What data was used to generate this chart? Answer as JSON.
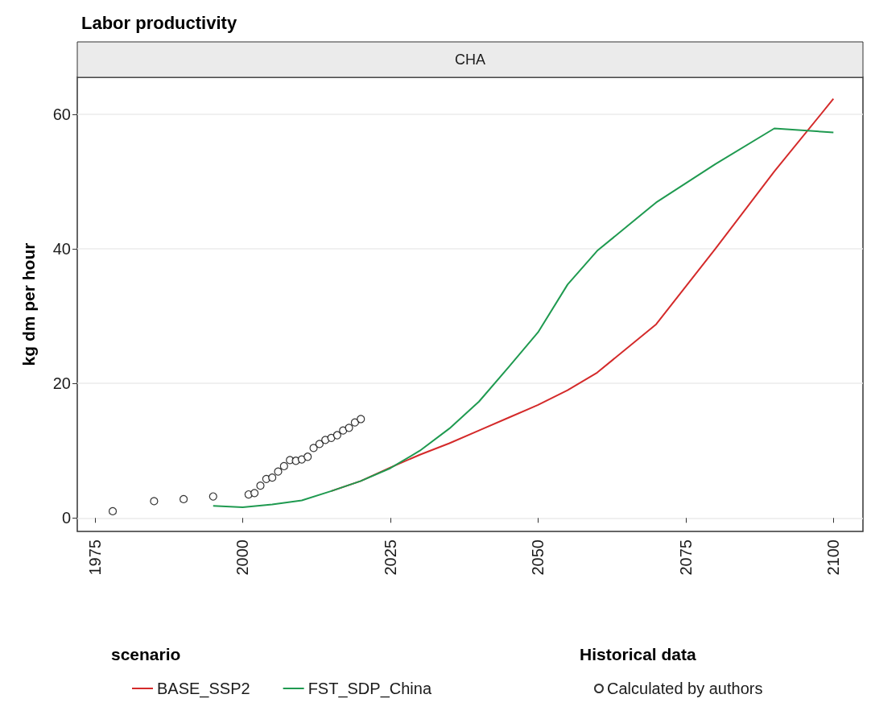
{
  "chart_data": {
    "type": "line",
    "title": "Labor productivity",
    "subtitle": "CHA",
    "ylabel": "kg dm per hour",
    "legend_title": "scenario",
    "annotations": [
      "Historical data"
    ],
    "xlim": [
      1972,
      2105
    ],
    "xticks": [
      1975,
      2000,
      2025,
      2050,
      2075,
      2100
    ],
    "ylim": [
      -2,
      65.5
    ],
    "yticks": [
      0,
      20,
      40,
      60
    ],
    "grid": "y",
    "legend": "bottom",
    "line_style": "solid",
    "series": [
      {
        "name": "BASE_SSP2",
        "color": "#d42a2a",
        "x": [
          2015,
          2020,
          2025,
          2030,
          2035,
          2040,
          2045,
          2050,
          2055,
          2060,
          2070,
          2080,
          2090,
          2100
        ],
        "values": [
          4.0,
          5.5,
          7.5,
          9.4,
          11.1,
          13.0,
          14.9,
          16.8,
          19.0,
          21.6,
          28.8,
          40.0,
          51.5,
          62.3
        ]
      },
      {
        "name": "FST_SDP_China",
        "color": "#1f9a50",
        "x": [
          1995,
          2000,
          2005,
          2010,
          2015,
          2020,
          2025,
          2030,
          2035,
          2040,
          2045,
          2050,
          2055,
          2060,
          2070,
          2080,
          2090,
          2100
        ],
        "values": [
          1.8,
          1.6,
          2.0,
          2.6,
          4.0,
          5.5,
          7.4,
          10.0,
          13.3,
          17.3,
          22.4,
          27.6,
          34.7,
          39.7,
          46.9,
          52.6,
          57.9,
          57.3
        ]
      },
      {
        "name": "Calculated by authors",
        "type": "scatter",
        "marker": "circle",
        "color": "#000000",
        "x": [
          1978,
          1985,
          1990,
          1995,
          2001,
          2002,
          2003,
          2004,
          2005,
          2006,
          2007,
          2008,
          2009,
          2010,
          2011,
          2012,
          2013,
          2014,
          2015,
          2016,
          2017,
          2018,
          2019,
          2020
        ],
        "values": [
          1.0,
          2.5,
          2.8,
          3.2,
          3.5,
          3.7,
          4.8,
          5.8,
          6.0,
          6.9,
          7.7,
          8.6,
          8.5,
          8.7,
          9.1,
          10.4,
          11.0,
          11.6,
          11.9,
          12.3,
          13.0,
          13.4,
          14.2,
          14.7
        ]
      }
    ]
  }
}
